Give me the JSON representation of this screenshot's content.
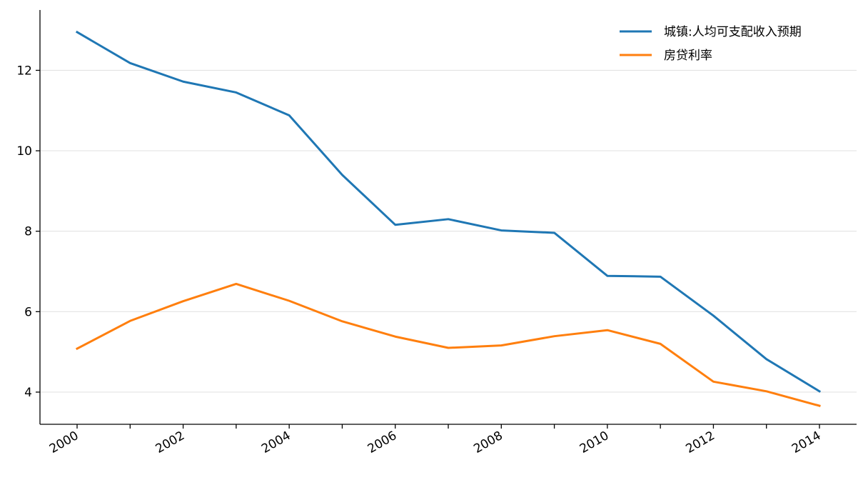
{
  "chart_data": {
    "type": "line",
    "x": [
      2000,
      2001,
      2002,
      2003,
      2004,
      2005,
      2006,
      2007,
      2008,
      2009,
      2010,
      2011,
      2012,
      2013,
      2014
    ],
    "x_ticks": [
      "2000",
      "2002",
      "2004",
      "2006",
      "2008",
      "2010",
      "2012",
      "2014"
    ],
    "x_tick_values": [
      2000,
      2002,
      2004,
      2006,
      2008,
      2010,
      2012,
      2014
    ],
    "xlim": [
      1999.3,
      2014.7
    ],
    "y_ticks": [
      "4",
      "6",
      "8",
      "10",
      "12"
    ],
    "y_tick_values": [
      4,
      6,
      8,
      10,
      12
    ],
    "ylim": [
      3.2,
      13.5
    ],
    "grid": "horizontal",
    "legend_position": "top-right",
    "series": [
      {
        "name": "城镇:人均可支配收入预期",
        "color": "#1f77b4",
        "values": [
          12.95,
          12.18,
          11.72,
          11.45,
          10.88,
          9.4,
          8.16,
          8.3,
          8.02,
          7.96,
          6.89,
          6.87,
          5.9,
          4.82,
          4.02
        ]
      },
      {
        "name": "房贷利率",
        "color": "#ff7f0e",
        "values": [
          5.08,
          5.77,
          6.26,
          6.69,
          6.27,
          5.76,
          5.38,
          5.1,
          5.16,
          5.39,
          5.54,
          5.2,
          4.26,
          4.02,
          3.66
        ]
      }
    ]
  }
}
